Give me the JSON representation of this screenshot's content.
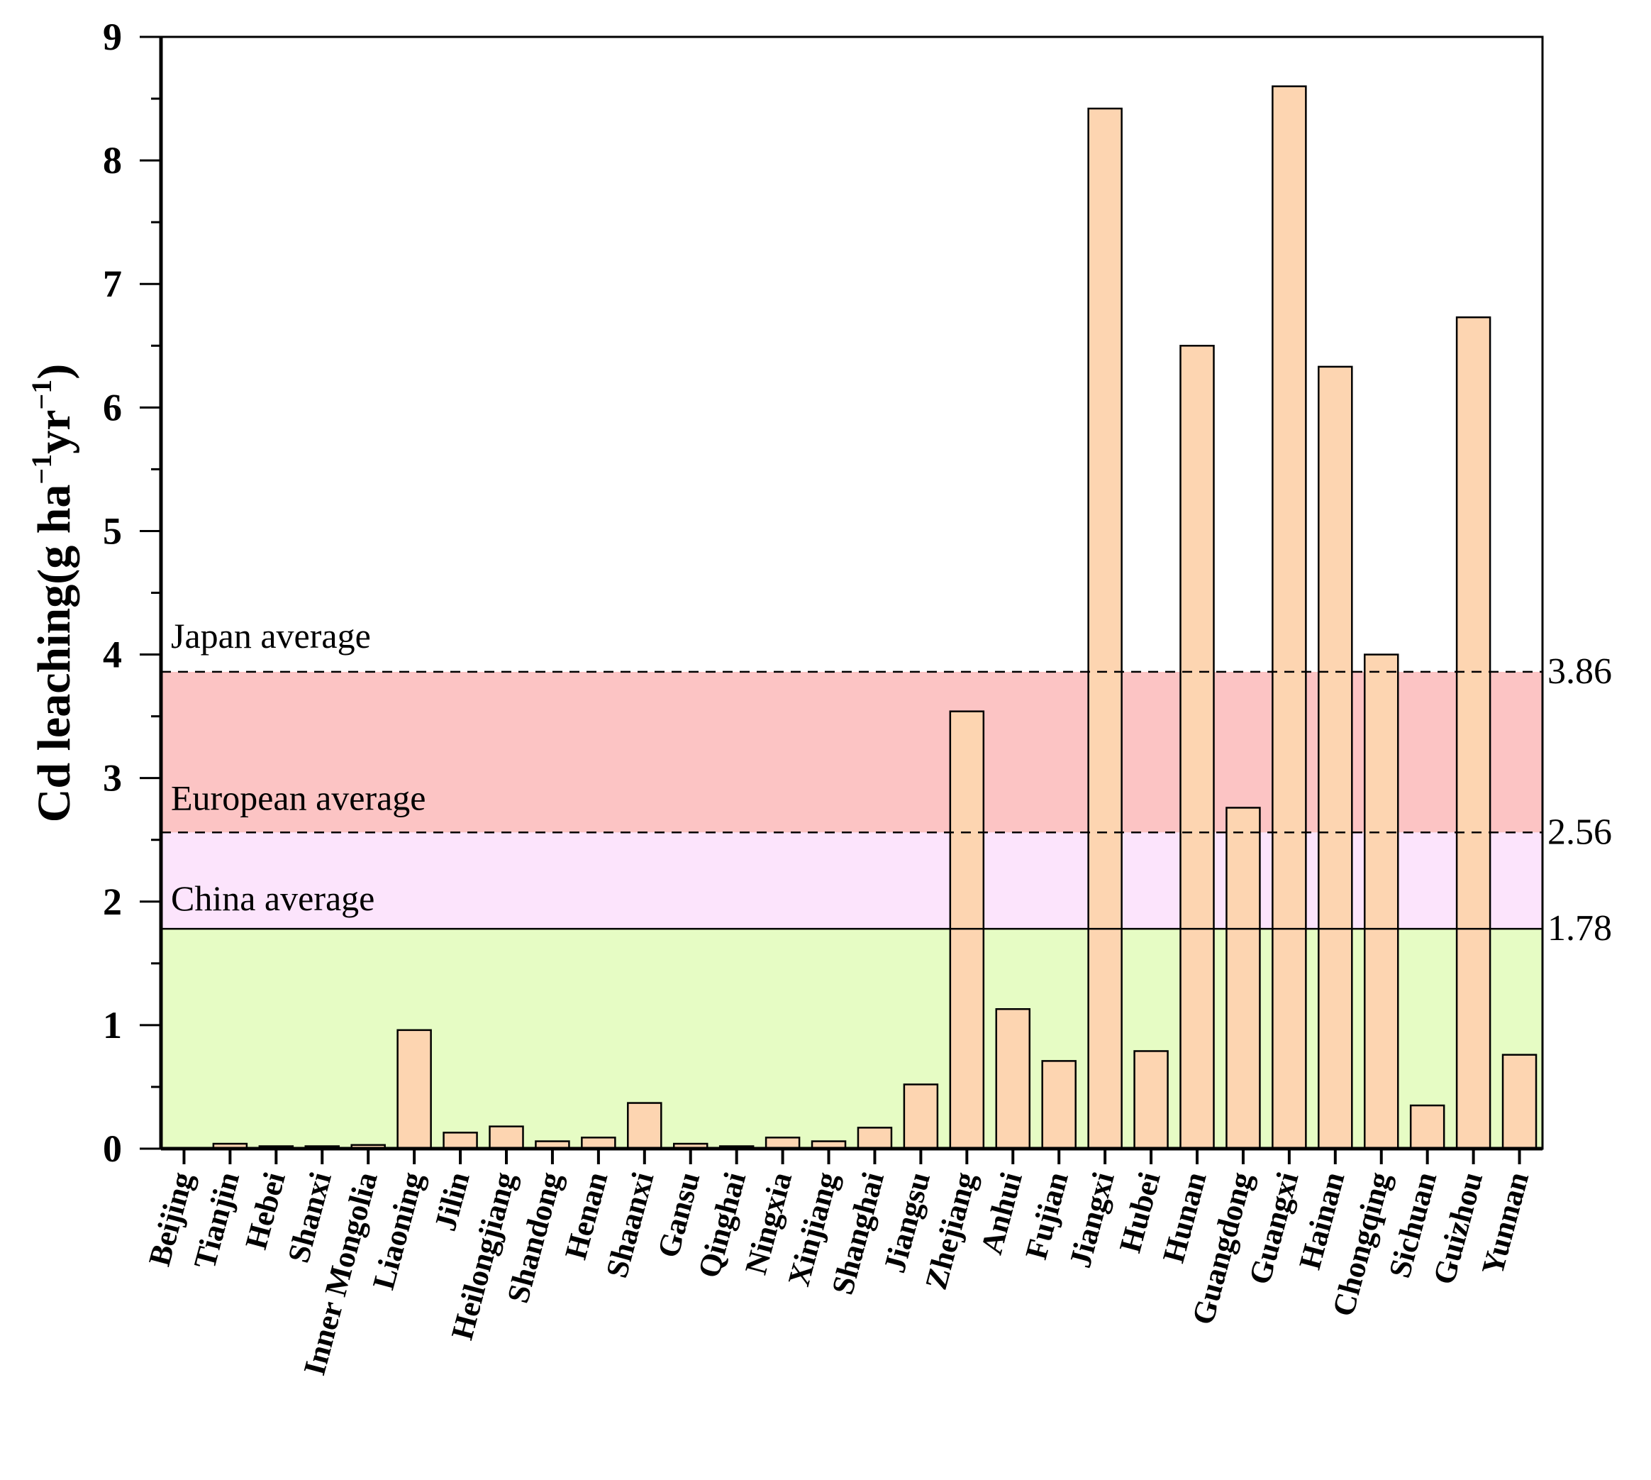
{
  "chart_data": {
    "type": "bar",
    "title": "",
    "xlabel": "",
    "ylabel": "Cd leaching(g ha⁻¹yr⁻¹)",
    "ylabel_parts": {
      "main": "Cd leaching(g ha",
      "sup1": "−1",
      "mid": "yr",
      "sup2": "−1",
      "end": ")"
    },
    "ylim": [
      0,
      9
    ],
    "yticks": [
      "0",
      "1",
      "2",
      "3",
      "4",
      "5",
      "6",
      "7",
      "8",
      "9"
    ],
    "grid": false,
    "categories": [
      "Beijing",
      "Tianjin",
      "Hebei",
      "Shanxi",
      "Inner Mongolia",
      "Liaoning",
      "Jilin",
      "Heilongjiang",
      "Shandong",
      "Henan",
      "Shaanxi",
      "Gansu",
      "Qinghai",
      "Ningxia",
      "Xinjiang",
      "Shanghai",
      "Jiangsu",
      "Zhejiang",
      "Anhui",
      "Fujian",
      "Jiangxi",
      "Hubei",
      "Hunan",
      "Guangdong",
      "Guangxi",
      "Hainan",
      "Chongqing",
      "Sichuan",
      "Guizhou",
      "Yunnan"
    ],
    "values": [
      0.0,
      0.04,
      0.02,
      0.02,
      0.03,
      0.96,
      0.13,
      0.18,
      0.06,
      0.09,
      0.37,
      0.04,
      0.02,
      0.09,
      0.06,
      0.17,
      0.52,
      3.54,
      1.13,
      0.71,
      8.42,
      0.79,
      6.5,
      2.76,
      8.6,
      6.33,
      4.0,
      0.35,
      6.73,
      0.76
    ],
    "bar_color": "#FDD5B1",
    "reference_lines": [
      {
        "label": "Japan average",
        "value": 3.86,
        "value_label": "3.86",
        "style": "dashed",
        "band_color": "#FCC4C4"
      },
      {
        "label": "European average",
        "value": 2.56,
        "value_label": "2.56",
        "style": "dashed",
        "band_color": "#FCE4FC"
      },
      {
        "label": "China average",
        "value": 1.78,
        "value_label": "1.78",
        "style": "solid",
        "band_color": "#E6FCC4"
      }
    ]
  }
}
